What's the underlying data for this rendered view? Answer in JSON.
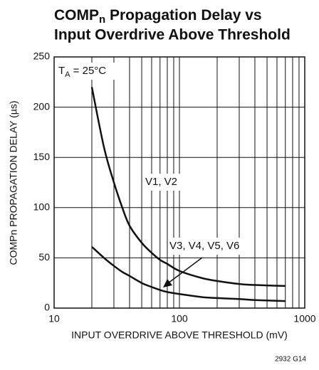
{
  "chart_data": {
    "type": "line",
    "title": {
      "line1": [
        "COMP",
        "n",
        " Propagation Delay vs"
      ],
      "line2": "Input Overdrive Above Threshold"
    },
    "xlabel": "INPUT OVERDRIVE ABOVE THRESHOLD (mV)",
    "ylabel": "COMPn PROPAGATION DELAY (µs)",
    "annotation": [
      "T",
      "A",
      " = 25°C"
    ],
    "footnote": "2932 G14",
    "xscale": "log",
    "xlim": [
      10,
      1000
    ],
    "xticks": [
      10,
      100,
      1000
    ],
    "xgrid": [
      20,
      30,
      40,
      50,
      60,
      70,
      80,
      90,
      200,
      300,
      400,
      500,
      600,
      700,
      800,
      900
    ],
    "ylim": [
      0,
      250
    ],
    "yticks": [
      0,
      50,
      100,
      150,
      200,
      250
    ],
    "grid": true,
    "series": [
      {
        "name": "V1, V2",
        "color": "#111111",
        "x": [
          20,
          25,
          30,
          35,
          40,
          50,
          60,
          70,
          80,
          100,
          150,
          200,
          300,
          400,
          700
        ],
        "values": [
          220,
          160,
          125,
          100,
          82,
          65,
          55,
          48,
          44,
          37,
          30,
          27,
          24,
          23,
          22
        ]
      },
      {
        "name": "V3, V4, V5, V6",
        "color": "#111111",
        "x": [
          20,
          25,
          30,
          35,
          40,
          50,
          60,
          70,
          80,
          100,
          150,
          200,
          300,
          400,
          700
        ],
        "values": [
          61,
          50,
          42,
          36,
          32,
          25,
          21,
          18,
          16,
          14,
          11,
          10,
          9,
          8,
          7
        ]
      }
    ]
  }
}
